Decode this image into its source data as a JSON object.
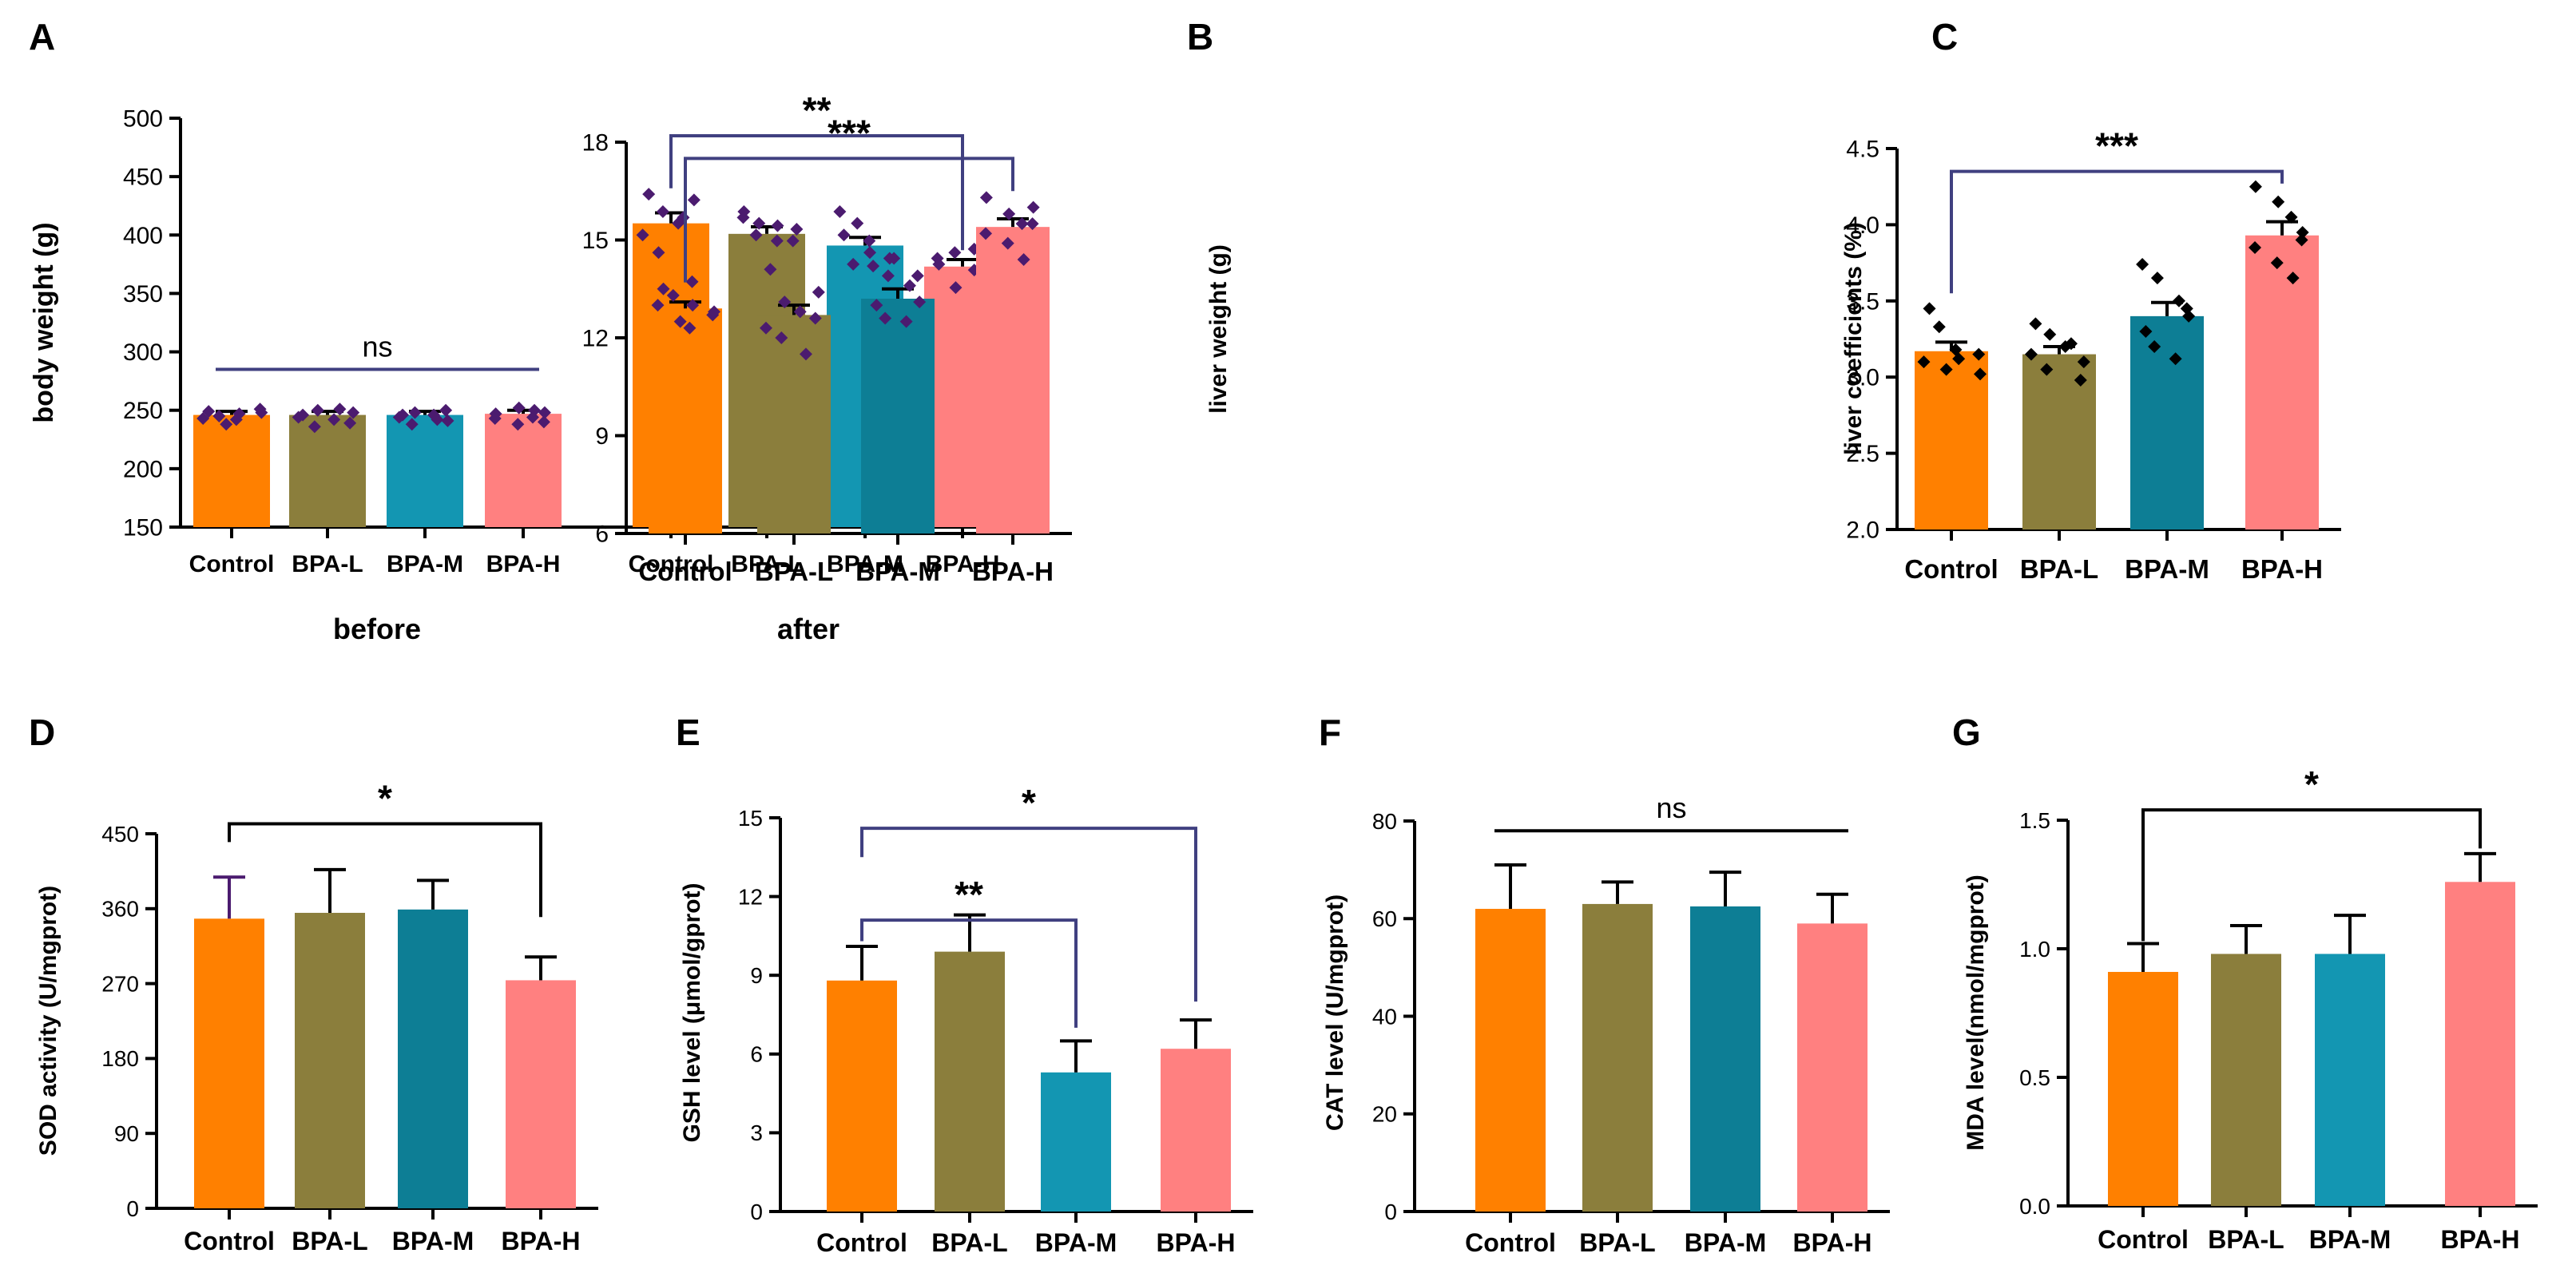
{
  "figure": {
    "background": "#ffffff"
  },
  "colors": {
    "Control": "#FF8000",
    "BPA-L": "#8B7E3C",
    "BPA-M": "#1396B2",
    "BPA-M-dark": "#0D7E95",
    "BPA-H": "#FF8080",
    "dot": "#4B1B6F",
    "dot-black": "#000000",
    "bracket": "#404080",
    "axis": "#000000"
  },
  "chart_data": [
    {
      "id": "A",
      "type": "bar",
      "title": "",
      "panel_label": "A",
      "ylabel": "body weight (g)",
      "ylim": [
        150,
        500
      ],
      "yticks": [
        150,
        200,
        250,
        300,
        350,
        400,
        450,
        500
      ],
      "categories": [
        "Control",
        "BPA-L",
        "BPA-M",
        "BPA-H",
        "Control",
        "BPA-L",
        "BPA-M",
        "BPA-H"
      ],
      "groups": [
        {
          "name": "before",
          "categories": [
            "Control",
            "BPA-L",
            "BPA-M",
            "BPA-H"
          ],
          "values": [
            246,
            246,
            246,
            247
          ],
          "errors": [
            3,
            3,
            3,
            3
          ]
        },
        {
          "name": "after",
          "categories": [
            "Control",
            "BPA-L",
            "BPA-M",
            "BPA-H"
          ],
          "values": [
            410,
            401,
            391,
            373
          ],
          "errors": [
            9,
            6,
            7,
            6
          ]
        }
      ],
      "points": [
        [
          249,
          245,
          247,
          251,
          243,
          238,
          242,
          248
        ],
        [
          246,
          250,
          242,
          248,
          244,
          236,
          251,
          239
        ],
        [
          244,
          248,
          242,
          250,
          246,
          238,
          246,
          241
        ],
        [
          247,
          252,
          244,
          248,
          243,
          238,
          250,
          240
        ],
        [
          435,
          420,
          415,
          430,
          400,
          385,
          410,
          360
        ],
        [
          420,
          410,
          395,
          405,
          415,
          400,
          408,
          395
        ],
        [
          420,
          410,
          385,
          380,
          400,
          375,
          395,
          380
        ],
        [
          380,
          385,
          370,
          360,
          375,
          355,
          388,
          370
        ]
      ],
      "annotations": [
        {
          "text": "ns",
          "type": "line",
          "from": 0,
          "to": 3,
          "y": 285
        },
        {
          "text": "**",
          "type": "bracket",
          "from": 4,
          "to": 7,
          "y": 485,
          "yleft": 440,
          "yright": 387
        }
      ]
    },
    {
      "id": "B",
      "type": "bar",
      "title": "",
      "panel_label": "B",
      "ylabel": "liver weight (g)",
      "ylim": [
        6,
        18
      ],
      "yticks": [
        6,
        9,
        12,
        15,
        18
      ],
      "categories": [
        "Control",
        "BPA-L",
        "BPA-M",
        "BPA-H"
      ],
      "values": [
        12.9,
        12.7,
        13.2,
        15.4
      ],
      "errors": [
        0.2,
        0.3,
        0.3,
        0.25
      ],
      "points": [
        [
          13.5,
          13.3,
          13.0,
          12.7,
          13.0,
          12.5,
          12.3,
          12.8
        ],
        [
          14.1,
          13.1,
          12.8,
          13.4,
          12.3,
          12.0,
          11.5,
          12.6
        ],
        [
          14.2,
          13.9,
          13.6,
          13.9,
          13.0,
          12.6,
          12.5,
          13.1
        ],
        [
          16.3,
          15.8,
          15.5,
          16.0,
          15.2,
          14.9,
          14.4,
          15.5
        ]
      ],
      "annotations": [
        {
          "text": "***",
          "type": "bracket",
          "from": 0,
          "to": 3,
          "y": 17.5,
          "yleft": 13.7,
          "yright": 16.5
        }
      ]
    },
    {
      "id": "C",
      "type": "bar",
      "title": "",
      "panel_label": "C",
      "ylabel": "liver coefficients (%)",
      "ylim": [
        2.0,
        4.5
      ],
      "yticks": [
        2.0,
        2.5,
        3.0,
        3.5,
        4.0,
        4.5
      ],
      "categories": [
        "Control",
        "BPA-L",
        "BPA-M",
        "BPA-H"
      ],
      "values": [
        3.17,
        3.15,
        3.4,
        3.93
      ],
      "errors": [
        0.06,
        0.05,
        0.09,
        0.09
      ],
      "points": [
        [
          3.45,
          3.33,
          3.12,
          3.15,
          3.1,
          3.05,
          3.18,
          3.02
        ],
        [
          3.35,
          3.28,
          3.2,
          3.1,
          3.15,
          3.05,
          3.22,
          2.98
        ],
        [
          3.74,
          3.65,
          3.5,
          3.45,
          3.3,
          3.2,
          3.12,
          3.4
        ],
        [
          4.25,
          4.15,
          4.05,
          3.95,
          3.85,
          3.75,
          3.65,
          3.9
        ]
      ],
      "dot_color": "dot-black",
      "annotations": [
        {
          "text": "***",
          "type": "bracket",
          "from": 0,
          "to": 3,
          "y": 4.35,
          "yleft": 3.55,
          "yright": 4.27
        }
      ]
    },
    {
      "id": "D",
      "type": "bar",
      "title": "",
      "panel_label": "D",
      "ylabel": "SOD activity (U/mgprot)",
      "ylim": [
        0,
        450
      ],
      "yticks": [
        0,
        90,
        180,
        270,
        360,
        450
      ],
      "categories": [
        "Control",
        "BPA-L",
        "BPA-M",
        "BPA-H"
      ],
      "values": [
        348,
        355,
        359,
        274
      ],
      "errors": [
        50,
        52,
        35,
        28
      ],
      "errorbar_colors": [
        "dot",
        "dot",
        "dot",
        "dot"
      ],
      "annotations": [
        {
          "text": "*",
          "type": "bracket",
          "from": 0,
          "to": 3,
          "y": 462,
          "yleft": 440,
          "yright": 350
        }
      ]
    },
    {
      "id": "E",
      "type": "bar",
      "title": "",
      "panel_label": "E",
      "ylabel": "GSH level (μmol/gprot)",
      "ylim": [
        0,
        15
      ],
      "yticks": [
        0,
        3,
        6,
        9,
        12,
        15
      ],
      "categories": [
        "Control",
        "BPA-L",
        "BPA-M",
        "BPA-H"
      ],
      "values": [
        8.8,
        9.9,
        5.3,
        6.2
      ],
      "errors": [
        1.3,
        1.4,
        1.2,
        1.1
      ],
      "annotations": [
        {
          "text": "*",
          "type": "bracket",
          "from": 0,
          "to": 3,
          "y": 14.6,
          "yleft": 13.5,
          "yright": 8.0
        },
        {
          "text": "**",
          "type": "bracket",
          "from": 0,
          "to": 2,
          "y": 11.1,
          "yleft": 10.3,
          "yright": 7.0
        }
      ]
    },
    {
      "id": "F",
      "type": "bar",
      "title": "",
      "panel_label": "F",
      "ylabel": "CAT level (U/mgprot)",
      "ylim": [
        0,
        80
      ],
      "yticks": [
        0,
        20,
        40,
        60,
        80
      ],
      "categories": [
        "Control",
        "BPA-L",
        "BPA-M",
        "BPA-H"
      ],
      "values": [
        62,
        63,
        62.5,
        59
      ],
      "errors": [
        9,
        4.5,
        7,
        6
      ],
      "annotations": [
        {
          "text": "ns",
          "type": "line",
          "from": 0,
          "to": 3,
          "y": 78
        }
      ]
    },
    {
      "id": "G",
      "type": "bar",
      "title": "",
      "panel_label": "G",
      "ylabel": "MDA level(nmol/mgprot)",
      "ylim": [
        0.0,
        1.5
      ],
      "yticks": [
        0.0,
        0.5,
        1.0,
        1.5
      ],
      "categories": [
        "Control",
        "BPA-L",
        "BPA-M",
        "BPA-H"
      ],
      "values": [
        0.91,
        0.98,
        0.98,
        1.26
      ],
      "errors": [
        0.11,
        0.11,
        0.15,
        0.11
      ],
      "annotations": [
        {
          "text": "*",
          "type": "bracket",
          "from": 0,
          "to": 3,
          "y": 1.54,
          "yleft": 1.03,
          "yright": 1.39
        }
      ]
    }
  ],
  "labels": {
    "before": "before",
    "after": "after"
  }
}
